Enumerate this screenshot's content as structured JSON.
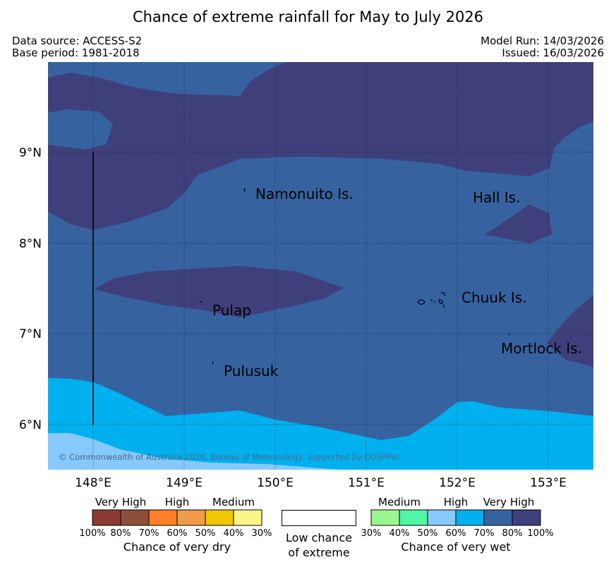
{
  "title": "Chance of extreme rainfall for May to July 2026",
  "meta": {
    "data_source": "Data source: ACCESS-S2",
    "base_period": "Base period: 1981-2018",
    "model_run": "Model Run: 14/03/2026",
    "issued": "Issued: 16/03/2026"
  },
  "map": {
    "lon_labels": [
      "148°E",
      "149°E",
      "150°E",
      "151°E",
      "152°E",
      "153°E"
    ],
    "lat_labels": [
      "9°N",
      "8°N",
      "7°N",
      "6°N"
    ],
    "places": [
      "Namonuito Is.",
      "Hall Is.",
      "Pulap",
      "Chuuk Is.",
      "Mortlock Is.",
      "Pulusuk"
    ],
    "copyright": "© Commonwealth of Australia 2026, Bureau of Meteorology, supported by COSPPac",
    "colors": {
      "very_high_wet": "#3f3f7b",
      "high_wet_80": "#3662a0",
      "high_wet_70": "#00b0ef",
      "medium_wet_60": "#86c9fb"
    }
  },
  "legend": {
    "dry": {
      "categories": [
        "Very High",
        "High",
        "Medium"
      ],
      "ticks": [
        "100%",
        "80%",
        "70%",
        "60%",
        "50%",
        "40%",
        "30%"
      ],
      "title": "Chance of very dry",
      "colors": [
        "#8b3b33",
        "#8c5038",
        "#fd7f26",
        "#ef9b4a",
        "#efc702",
        "#fdf587"
      ]
    },
    "neutral": {
      "title_line1": "Low chance",
      "title_line2": "of extreme"
    },
    "wet": {
      "categories": [
        "Medium",
        "High",
        "Very High"
      ],
      "ticks": [
        "30%",
        "40%",
        "50%",
        "60%",
        "70%",
        "80%",
        "100%"
      ],
      "title": "Chance of very wet",
      "colors": [
        "#9cf68f",
        "#4ef6a5",
        "#86c9fb",
        "#00b0ef",
        "#3662a0",
        "#3f3f7b"
      ]
    }
  }
}
